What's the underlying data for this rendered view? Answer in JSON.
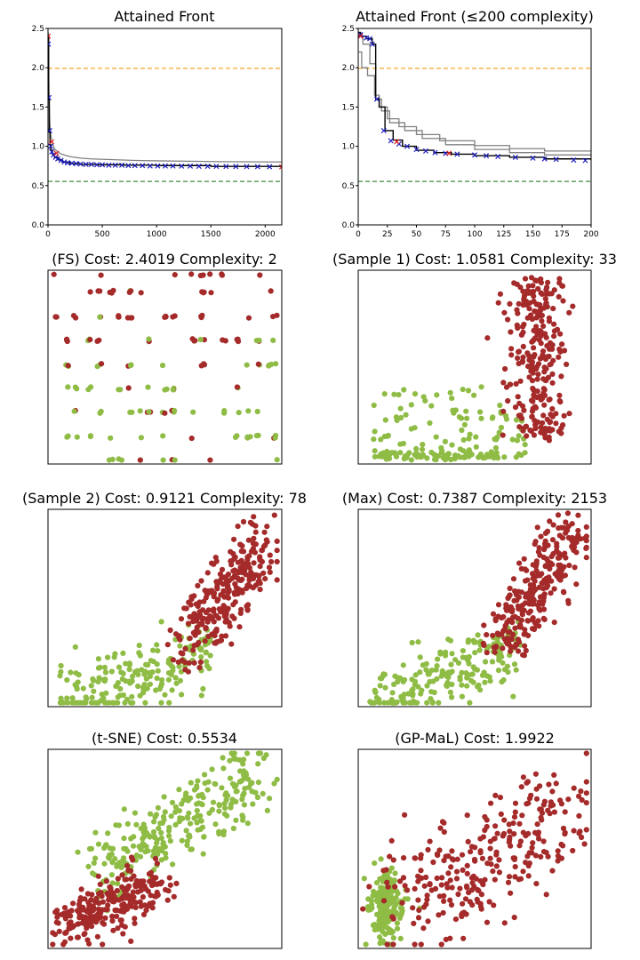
{
  "chart_data": [
    {
      "type": "line",
      "title": "Attained Front",
      "xlabel": "",
      "ylabel": "",
      "xlim": [
        0,
        2153
      ],
      "ylim": [
        0,
        2.5
      ],
      "xticks": [
        0,
        500,
        1000,
        1500,
        2000
      ],
      "xtick_labels": [
        "0",
        "500",
        "1000",
        "1500",
        "2000"
      ],
      "yticks": [
        0.0,
        0.5,
        1.0,
        1.5,
        2.0,
        2.5
      ],
      "ytick_labels": [
        "0.0",
        "0.5",
        "1.0",
        "1.5",
        "2.0",
        "2.5"
      ],
      "grid": false,
      "hlines": [
        {
          "y": 1.9922,
          "color": "#f5a623",
          "style": "dashed"
        },
        {
          "y": 0.5534,
          "color": "#2e7d32",
          "style": "dashed"
        }
      ],
      "series": [
        {
          "role": "front-gray",
          "color": "#808080",
          "x": [
            2,
            5,
            10,
            15,
            20,
            30,
            45,
            60,
            80,
            110,
            150,
            200,
            300,
            400,
            600,
            800,
            1000,
            1300,
            1600,
            2153
          ],
          "y": [
            2.45,
            2.0,
            1.6,
            1.35,
            1.22,
            1.1,
            1.02,
            0.97,
            0.94,
            0.91,
            0.89,
            0.87,
            0.85,
            0.84,
            0.83,
            0.82,
            0.815,
            0.81,
            0.805,
            0.8
          ]
        },
        {
          "role": "front-black",
          "color": "#000000",
          "step": true,
          "x": [
            2,
            6,
            12,
            18,
            25,
            40,
            60,
            90,
            130,
            200,
            300,
            450,
            700,
            1000,
            1500,
            2153
          ],
          "y": [
            2.4,
            1.6,
            1.18,
            1.02,
            0.95,
            0.9,
            0.86,
            0.83,
            0.8,
            0.78,
            0.77,
            0.765,
            0.76,
            0.755,
            0.745,
            0.7387
          ]
        }
      ],
      "markers": [
        {
          "color": "#1f1fbf",
          "shape": "x",
          "x": [
            3,
            8,
            15,
            25,
            35,
            50,
            70,
            90,
            120,
            150,
            180,
            220,
            260,
            300,
            350,
            400,
            450,
            500,
            560,
            620,
            680,
            740,
            800,
            870,
            940,
            1010,
            1080,
            1150,
            1230,
            1310,
            1390,
            1470,
            1550,
            1640,
            1730,
            1830,
            1930,
            2040
          ],
          "y": [
            2.3,
            1.62,
            1.2,
            1.0,
            0.93,
            0.89,
            0.86,
            0.84,
            0.82,
            0.8,
            0.79,
            0.785,
            0.78,
            0.775,
            0.77,
            0.77,
            0.765,
            0.765,
            0.76,
            0.76,
            0.76,
            0.755,
            0.755,
            0.755,
            0.75,
            0.75,
            0.75,
            0.75,
            0.748,
            0.748,
            0.746,
            0.746,
            0.745,
            0.744,
            0.743,
            0.742,
            0.741,
            0.74
          ]
        },
        {
          "color": "#e02020",
          "shape": "x",
          "x": [
            2,
            33,
            78,
            2153
          ],
          "y": [
            2.4019,
            1.0581,
            0.9121,
            0.7387
          ]
        }
      ]
    },
    {
      "type": "line",
      "title": "Attained Front (≤200 complexity)",
      "xlabel": "",
      "ylabel": "",
      "xlim": [
        0,
        200
      ],
      "ylim": [
        0,
        2.5
      ],
      "xticks": [
        0,
        25,
        50,
        75,
        100,
        125,
        150,
        175,
        200
      ],
      "xtick_labels": [
        "0",
        "25",
        "50",
        "75",
        "100",
        "125",
        "150",
        "175",
        "200"
      ],
      "yticks": [
        0.0,
        0.5,
        1.0,
        1.5,
        2.0,
        2.5
      ],
      "ytick_labels": [
        "0.0",
        "0.5",
        "1.0",
        "1.5",
        "2.0",
        "2.5"
      ],
      "grid": false,
      "hlines": [
        {
          "y": 1.9922,
          "color": "#f5a623",
          "style": "dashed"
        },
        {
          "y": 0.5534,
          "color": "#2e7d32",
          "style": "dashed"
        }
      ],
      "series": [
        {
          "role": "gray-1",
          "color": "#808080",
          "step": true,
          "x": [
            0,
            3,
            8,
            14,
            18,
            25,
            35,
            50,
            70,
            100,
            130,
            160,
            200
          ],
          "y": [
            2.2,
            2.0,
            1.9,
            1.65,
            1.5,
            1.35,
            1.25,
            1.15,
            1.07,
            1.01,
            0.97,
            0.94,
            0.92
          ]
        },
        {
          "role": "gray-2",
          "color": "#808080",
          "step": true,
          "x": [
            0,
            4,
            10,
            15,
            20,
            27,
            40,
            55,
            75,
            100,
            130,
            160,
            200
          ],
          "y": [
            2.4,
            2.3,
            2.05,
            1.6,
            1.45,
            1.3,
            1.2,
            1.1,
            1.02,
            0.96,
            0.92,
            0.89,
            0.87
          ]
        },
        {
          "role": "front-black",
          "color": "#000000",
          "step": true,
          "x": [
            0,
            2,
            7,
            12,
            15,
            18,
            23,
            30,
            38,
            50,
            65,
            80,
            100,
            130,
            160,
            200
          ],
          "y": [
            2.45,
            2.4,
            2.37,
            2.3,
            1.6,
            1.5,
            1.2,
            1.08,
            1.0,
            0.95,
            0.92,
            0.9,
            0.88,
            0.86,
            0.84,
            0.82
          ]
        }
      ],
      "markers": [
        {
          "color": "#1f1fbf",
          "shape": "x",
          "x": [
            2,
            7,
            10,
            12,
            16,
            22,
            28,
            35,
            42,
            50,
            58,
            66,
            75,
            85,
            100,
            110,
            120,
            135,
            150,
            160,
            170,
            185,
            195
          ],
          "y": [
            2.42,
            2.38,
            2.37,
            2.3,
            1.6,
            1.2,
            1.07,
            1.03,
            1.0,
            0.96,
            0.94,
            0.92,
            0.91,
            0.9,
            0.89,
            0.88,
            0.87,
            0.86,
            0.85,
            0.84,
            0.835,
            0.825,
            0.82
          ]
        },
        {
          "color": "#e02020",
          "shape": "x",
          "x": [
            2,
            33,
            78
          ],
          "y": [
            2.4019,
            1.0581,
            0.9121
          ]
        }
      ]
    },
    {
      "type": "scatter",
      "title": "(FS) Cost: 2.4019 Complexity: 2",
      "mode": "grid",
      "cols": [
        0.03,
        0.08,
        0.12,
        0.18,
        0.22,
        0.27,
        0.31,
        0.35,
        0.39,
        0.43,
        0.5,
        0.54,
        0.62,
        0.66,
        0.7,
        0.75,
        0.81,
        0.86,
        0.9,
        0.95,
        0.97
      ],
      "rows": [
        0.02,
        0.14,
        0.27,
        0.39,
        0.51,
        0.64,
        0.76,
        0.89,
        0.98
      ],
      "seed": 11,
      "colors": {
        "class_a": "#a52a2a",
        "class_b": "#8fbc45"
      }
    },
    {
      "type": "scatter",
      "title": "(Sample 1) Cost: 1.0581 Complexity: 33",
      "mode": "sample1",
      "seed": 23,
      "colors": {
        "class_a": "#a52a2a",
        "class_b": "#8fbc45"
      }
    },
    {
      "type": "scatter",
      "title": "(Sample 2) Cost: 0.9121 Complexity: 78",
      "mode": "curve",
      "seed": 37,
      "colors": {
        "class_a": "#a52a2a",
        "class_b": "#8fbc45"
      }
    },
    {
      "type": "scatter",
      "title": "(Max) Cost: 0.7387 Complexity: 2153",
      "mode": "curve2",
      "seed": 41,
      "colors": {
        "class_a": "#a52a2a",
        "class_b": "#8fbc45"
      }
    },
    {
      "type": "scatter",
      "title": "(t-SNE) Cost: 0.5534",
      "mode": "tsne",
      "seed": 53,
      "colors": {
        "class_a": "#a52a2a",
        "class_b": "#8fbc45"
      }
    },
    {
      "type": "scatter",
      "title": "(GP-MaL) Cost: 1.9922",
      "mode": "gpmal",
      "seed": 67,
      "colors": {
        "class_a": "#a52a2a",
        "class_b": "#8fbc45"
      }
    }
  ]
}
